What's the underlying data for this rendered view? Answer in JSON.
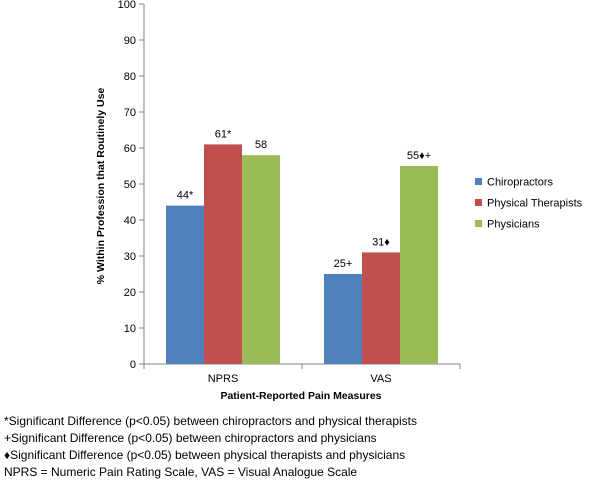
{
  "chart_data": {
    "type": "bar",
    "xlabel": "Patient-Reported Pain Measures",
    "ylabel": "% Within Profession that Routinely Use",
    "ylim": [
      0,
      100
    ],
    "yticks": [
      "0",
      "10",
      "20",
      "30",
      "40",
      "50",
      "60",
      "70",
      "80",
      "90",
      "100"
    ],
    "categories": [
      "NPRS",
      "VAS"
    ],
    "series": [
      {
        "name": "Chiropractors",
        "color": "#4F81BD",
        "values": [
          44,
          25
        ],
        "labels": [
          "44*",
          "25+"
        ]
      },
      {
        "name": "Physical Therapists",
        "color": "#C0504D",
        "values": [
          61,
          31
        ],
        "labels": [
          "61*",
          "31♦"
        ]
      },
      {
        "name": "Physicians",
        "color": "#9BBB59",
        "values": [
          58,
          55
        ],
        "labels": [
          "58",
          "55♦+"
        ]
      }
    ],
    "legend_position": "right",
    "grid": false
  },
  "notes": [
    "*Significant Difference (p<0.05) between chiropractors and physical therapists",
    "+Significant Difference (p<0.05) between chiropractors and physicians",
    "♦Significant Difference (p<0.05) between physical therapists and physicians",
    "NPRS = Numeric Pain Rating Scale, VAS = Visual Analogue Scale"
  ]
}
